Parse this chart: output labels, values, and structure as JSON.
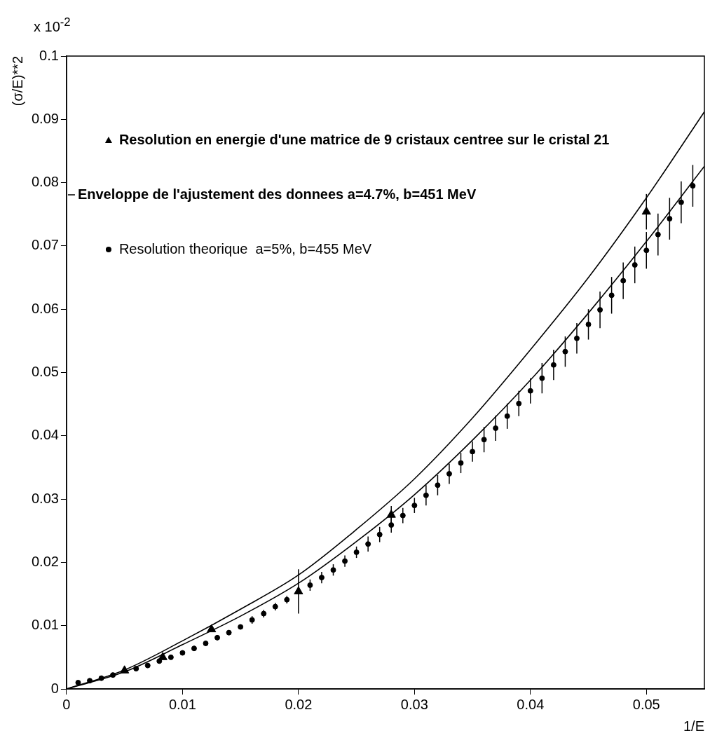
{
  "chart_data": {
    "type": "scatter",
    "xlabel": "1/E",
    "ylabel": "(σ/E)**2",
    "annotations": [
      "x 10$^{-2}$"
    ],
    "xlim": [
      0,
      0.055
    ],
    "xticks": [
      0,
      0.01,
      0.02,
      0.03,
      0.04,
      0.05
    ],
    "ylim": [
      0,
      0.1
    ],
    "yticks": [
      0,
      0.01,
      0.02,
      0.03,
      0.04,
      0.05,
      0.06,
      0.07,
      0.08,
      0.09,
      0.1
    ],
    "legend": "top left",
    "series": [
      {
        "name": "Resolution en energie d'une matrice de 9 cristaux centree sur le cristal 21",
        "type": "scatter",
        "marker": "triangle",
        "color": "#000000",
        "x": [
          0.005,
          0.0083,
          0.0125,
          0.02,
          0.028,
          0.05
        ],
        "values": [
          0.0029,
          0.005,
          0.0094,
          0.0154,
          0.0275,
          0.0754
        ],
        "errors": [
          null,
          null,
          null,
          0.0035,
          0.0014,
          0.0028
        ]
      },
      {
        "name": "Enveloppe de l'ajustement des donnees a=4.7%, b=451 MeV",
        "type": "line",
        "marker": "none",
        "line_style": "solid",
        "color": "#000000",
        "x": [
          0,
          0.005,
          0.01,
          0.015,
          0.02,
          0.025,
          0.03,
          0.035,
          0.04,
          0.045,
          0.05,
          0.055
        ],
        "values": [
          0,
          0.003,
          0.0076,
          0.0126,
          0.018,
          0.0252,
          0.0332,
          0.0428,
          0.0536,
          0.065,
          0.0776,
          0.0912
        ]
      },
      {
        "type": "line",
        "marker": "none",
        "line_style": "solid",
        "color": "#000000",
        "x": [
          0,
          0.005,
          0.01,
          0.015,
          0.02,
          0.025,
          0.03,
          0.035,
          0.04,
          0.045,
          0.05,
          0.055
        ],
        "values": [
          0,
          0.0027,
          0.007,
          0.0115,
          0.0167,
          0.0233,
          0.0307,
          0.0393,
          0.0488,
          0.0594,
          0.0707,
          0.0826
        ]
      },
      {
        "name": "Resolution theorique  a=5%, b=455 MeV",
        "type": "scatter",
        "marker": "circle",
        "color": "#000000",
        "x": [
          0.001,
          0.002,
          0.003,
          0.004,
          0.005,
          0.006,
          0.007,
          0.008,
          0.009,
          0.01,
          0.011,
          0.012,
          0.013,
          0.014,
          0.015,
          0.016,
          0.017,
          0.018,
          0.019,
          0.02,
          0.021,
          0.022,
          0.023,
          0.024,
          0.025,
          0.026,
          0.027,
          0.028,
          0.029,
          0.03,
          0.031,
          0.032,
          0.033,
          0.034,
          0.035,
          0.036,
          0.037,
          0.038,
          0.039,
          0.04,
          0.041,
          0.042,
          0.043,
          0.044,
          0.045,
          0.046,
          0.047,
          0.048,
          0.049,
          0.05,
          0.051,
          0.052,
          0.053,
          0.054
        ],
        "values": [
          0.001,
          0.0013,
          0.0017,
          0.0022,
          null,
          0.0032,
          0.0037,
          0.0044,
          0.005,
          0.0057,
          0.0064,
          0.0072,
          0.0081,
          0.0089,
          0.0098,
          0.0109,
          0.0119,
          0.013,
          0.0141,
          null,
          0.0164,
          0.0176,
          0.0188,
          0.0202,
          0.0216,
          0.0229,
          0.0244,
          0.0259,
          0.0274,
          0.029,
          0.0306,
          0.0322,
          0.034,
          0.0357,
          0.0375,
          0.0394,
          0.0412,
          0.0431,
          0.0451,
          0.0471,
          0.0491,
          0.0512,
          0.0533,
          0.0554,
          0.0576,
          0.0599,
          0.0622,
          0.0645,
          0.067,
          0.0693,
          0.0718,
          0.0743,
          0.0769,
          0.0795
        ],
        "errors": [
          null,
          null,
          null,
          null,
          null,
          null,
          null,
          null,
          null,
          null,
          0.0004,
          0.0004,
          0.0004,
          0.0004,
          0.0004,
          0.0006,
          0.0006,
          0.0006,
          0.0006,
          null,
          0.0009,
          0.0009,
          0.0009,
          0.0009,
          0.0009,
          0.0012,
          0.0012,
          0.0012,
          0.0012,
          0.0012,
          0.0016,
          0.0016,
          0.0016,
          0.0016,
          0.0016,
          0.002,
          0.002,
          0.002,
          0.002,
          0.002,
          0.0024,
          0.0024,
          0.0024,
          0.0024,
          0.0024,
          0.0029,
          0.0029,
          0.0029,
          0.0029,
          0.0029,
          0.0033,
          0.0033,
          0.0033,
          0.0033
        ]
      }
    ]
  }
}
